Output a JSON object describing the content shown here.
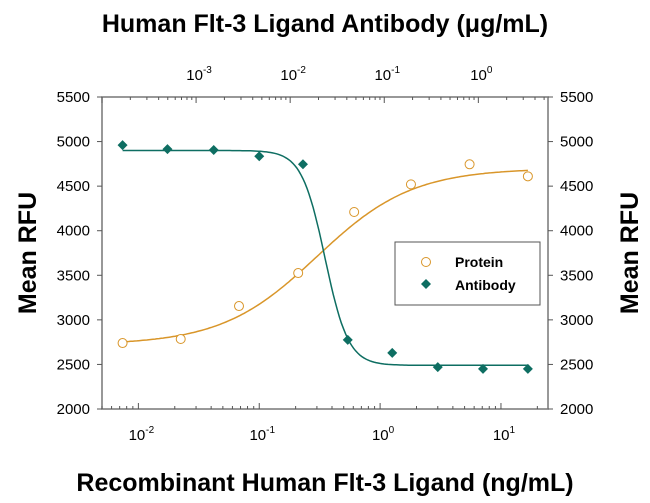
{
  "chart_data": {
    "type": "scatter",
    "title": "Human Flt-3 Ligand Antibody (μg/mL)",
    "xlabel": "Recombinant Human Flt-3 Ligand (ng/mL)",
    "ylabel": "Mean RFU",
    "ylabel_right": "Mean RFU",
    "x_scale": "log",
    "xlim": [
      0.005,
      24.5
    ],
    "x_ticks": [
      {
        "base": "10",
        "exp": "-2",
        "value": 0.01
      },
      {
        "base": "10",
        "exp": "-1",
        "value": 0.1
      },
      {
        "base": "10",
        "exp": "0",
        "value": 1
      },
      {
        "base": "10",
        "exp": "1",
        "value": 10
      }
    ],
    "top_axis": {
      "scale": "log",
      "xlim": [
        0.0001,
        5.5
      ],
      "ticks": [
        {
          "base": "10",
          "exp": "-3",
          "value": 0.001
        },
        {
          "base": "10",
          "exp": "-2",
          "value": 0.01
        },
        {
          "base": "10",
          "exp": "-1",
          "value": 0.1
        },
        {
          "base": "10",
          "exp": "0",
          "value": 1
        }
      ]
    },
    "ylim": [
      2000,
      5500
    ],
    "y_ticks": [
      "2000",
      "2500",
      "3000",
      "3500",
      "4000",
      "4500",
      "5000",
      "5500"
    ],
    "grid": false,
    "legend": {
      "placement": "right",
      "entries": [
        "Protein",
        "Antibody"
      ]
    },
    "series": [
      {
        "name": "Protein",
        "marker": "open-circle",
        "color": "#d9962a",
        "x": [
          0.0074,
          0.0224,
          0.068,
          0.21,
          0.61,
          1.8,
          5.5,
          16.7
        ],
        "y": [
          2740,
          2785,
          3155,
          3525,
          4210,
          4520,
          4745,
          4610
        ],
        "fit": {
          "bottom": 2720,
          "top": 4700,
          "ec50": 0.3,
          "hill": 1.1
        }
      },
      {
        "name": "Antibody",
        "marker": "filled-diamond",
        "color": "#0e6e62",
        "x": [
          0.0074,
          0.0174,
          0.042,
          0.1,
          0.23,
          0.54,
          1.26,
          3.0,
          7.1,
          16.7
        ],
        "y": [
          4960,
          4915,
          4905,
          4835,
          4745,
          2775,
          2630,
          2470,
          2450,
          2450
        ],
        "fit": {
          "bottom": 2490,
          "top": 4900,
          "ec50": 0.35,
          "hill": 4.5
        }
      }
    ]
  }
}
